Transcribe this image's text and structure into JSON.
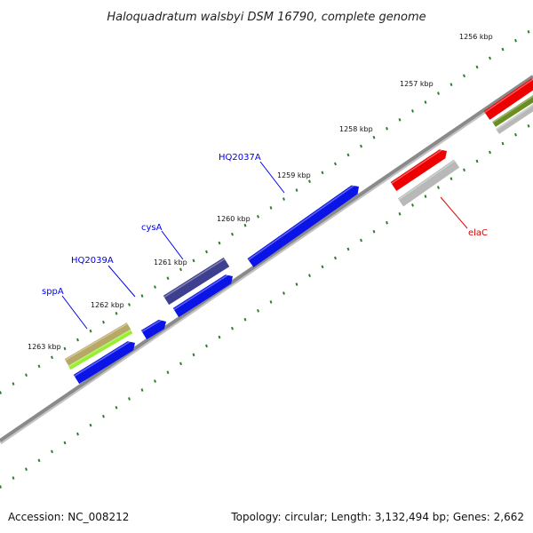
{
  "title": "Haloquadratum walsbyi DSM 16790, complete genome",
  "tick_labels": [
    "1256 kbp",
    "1257 kbp",
    "1258 kbp",
    "1259 kbp",
    "1260 kbp",
    "1261 kbp",
    "1262 kbp",
    "1263 kbp"
  ],
  "genes": [
    {
      "name": "HQ2037A",
      "color": "#0000ee"
    },
    {
      "name": "cysA",
      "color": "#0000ee"
    },
    {
      "name": "HQ2039A",
      "color": "#0000ee"
    },
    {
      "name": "sppA",
      "color": "#0000ee"
    },
    {
      "name": "elaC",
      "color": "#dd0000"
    }
  ],
  "footer": {
    "accession": "Accession: NC_008212",
    "summary": "Topology: circular; Length: 3,132,494 bp; Genes: 2,662"
  },
  "colors": {
    "backbone": "#8a8a8a",
    "tick": "#2e7d2e",
    "feature_blue": "#0a14e6",
    "feature_navy": "#3f3f8f",
    "feature_red": "#ee0000",
    "feature_gray": "#b8b8b8",
    "feature_tan": "#b8a866",
    "feature_lime": "#99ee33",
    "feature_olive": "#6b8e23"
  }
}
